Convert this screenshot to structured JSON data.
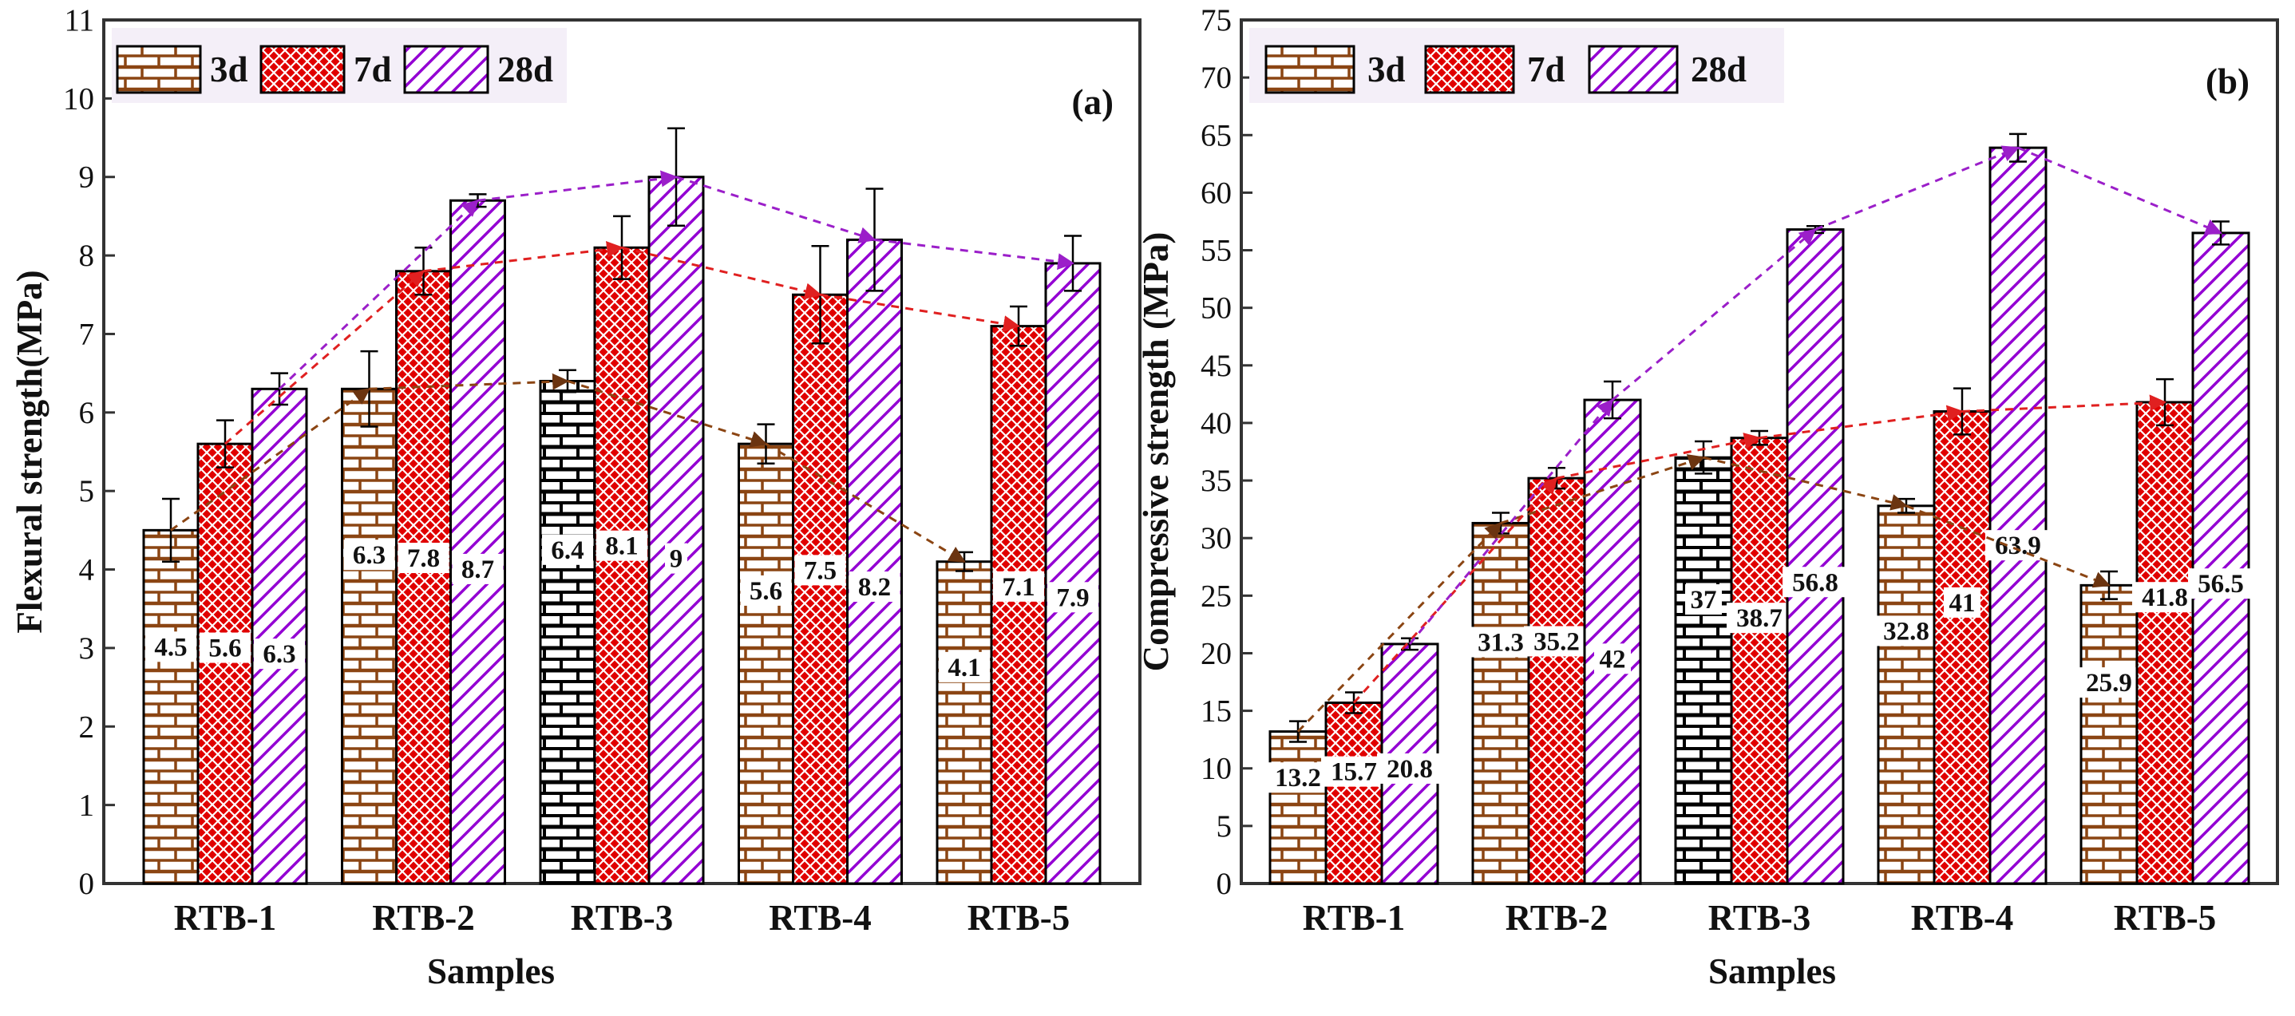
{
  "colors": {
    "series_3d": "#8B4513",
    "series_3d_highlight": "#000000",
    "series_7d": "#E00000",
    "series_28d": "#9400D3",
    "trend_3d": "#8B4513",
    "trend_7d": "#E02020",
    "trend_28d": "#9B1FC9",
    "legend_bg": "#F4EFF8",
    "axis": "#333333"
  },
  "chart_data": [
    {
      "type": "bar",
      "panel": "(a)",
      "xlabel": "Samples",
      "ylabel": "Flexural strength(MPa)",
      "ylim": [
        0,
        11
      ],
      "yticks": [
        "0",
        "1",
        "2",
        "3",
        "4",
        "5",
        "6",
        "7",
        "8",
        "9",
        "10",
        "11"
      ],
      "categories": [
        "RTB-1",
        "RTB-2",
        "RTB-3",
        "RTB-4",
        "RTB-5"
      ],
      "legend": [
        "3d",
        "7d",
        "28d"
      ],
      "series": [
        {
          "name": "3d",
          "values": [
            4.5,
            6.3,
            6.4,
            5.6,
            4.1
          ],
          "labels": [
            "4.5",
            "6.3",
            "6.4",
            "5.6",
            "4.1"
          ],
          "errors": [
            0.4,
            0.48,
            0.14,
            0.25,
            0.12
          ]
        },
        {
          "name": "7d",
          "values": [
            5.6,
            7.8,
            8.1,
            7.5,
            7.1
          ],
          "labels": [
            "5.6",
            "7.8",
            "8.1",
            "7.5",
            "7.1"
          ],
          "errors": [
            0.3,
            0.3,
            0.4,
            0.62,
            0.25
          ]
        },
        {
          "name": "28d",
          "values": [
            6.3,
            8.7,
            9.0,
            8.2,
            7.9
          ],
          "labels": [
            "6.3",
            "8.7",
            "9",
            "8.2",
            "7.9"
          ],
          "errors": [
            0.2,
            0.08,
            0.62,
            0.65,
            0.35
          ]
        }
      ]
    },
    {
      "type": "bar",
      "panel": "(b)",
      "xlabel": "Samples",
      "ylabel": "Compressive strength (MPa)",
      "ylim": [
        0,
        75
      ],
      "yticks": [
        "0",
        "5",
        "10",
        "15",
        "20",
        "25",
        "30",
        "35",
        "40",
        "45",
        "50",
        "55",
        "60",
        "65",
        "70",
        "75"
      ],
      "categories": [
        "RTB-1",
        "RTB-2",
        "RTB-3",
        "RTB-4",
        "RTB-5"
      ],
      "legend": [
        "3d",
        "7d",
        "28d"
      ],
      "series": [
        {
          "name": "3d",
          "values": [
            13.2,
            31.3,
            37.0,
            32.8,
            25.9
          ],
          "labels": [
            "13.2",
            "31.3",
            "37",
            "32.8",
            "25.9"
          ],
          "errors": [
            0.9,
            0.9,
            1.4,
            0.6,
            1.2
          ]
        },
        {
          "name": "7d",
          "values": [
            15.7,
            35.2,
            38.7,
            41.0,
            41.8
          ],
          "labels": [
            "15.7",
            "35.2",
            "38.7",
            "41",
            "41.8"
          ],
          "errors": [
            0.9,
            0.9,
            0.6,
            2.0,
            2.0
          ]
        },
        {
          "name": "28d",
          "values": [
            20.8,
            42.0,
            56.8,
            63.9,
            56.5
          ],
          "labels": [
            "20.8",
            "42",
            "56.8",
            "63.9",
            "56.5"
          ],
          "errors": [
            0.5,
            1.6,
            0.3,
            1.2,
            1.0
          ]
        }
      ]
    }
  ]
}
